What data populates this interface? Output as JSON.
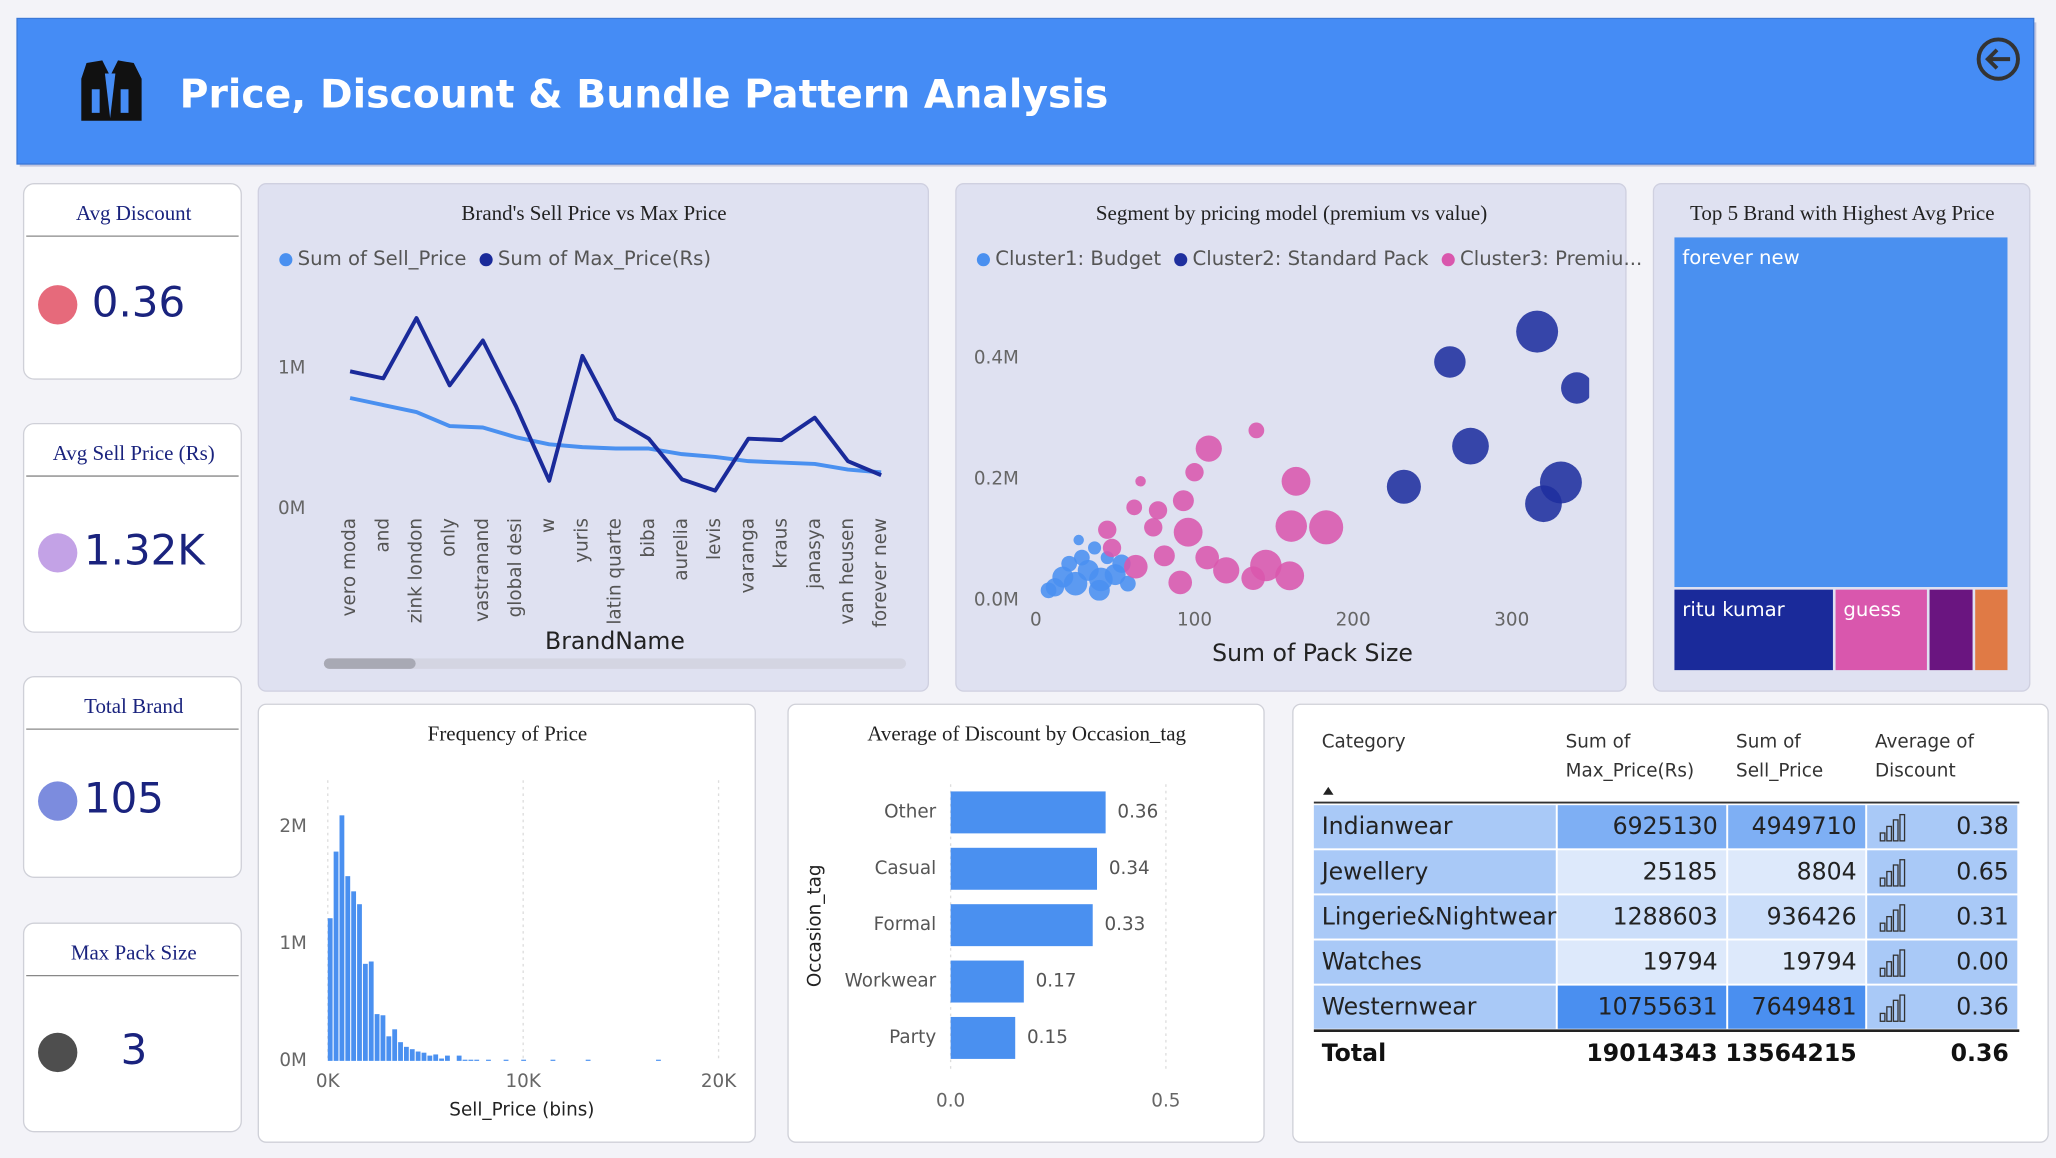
{
  "header": {
    "title": "Price, Discount & Bundle Pattern Analysis"
  },
  "kpis": [
    {
      "label": "Avg Discount",
      "value": "0.36"
    },
    {
      "label": "Avg Sell Price (Rs)",
      "value": "1.32K"
    },
    {
      "label": "Total Brand",
      "value": "105"
    },
    {
      "label": "Max Pack Size",
      "value": "3"
    }
  ],
  "chart_data": [
    {
      "type": "line",
      "title": "Brand's Sell Price vs Max Price",
      "x_label": "BrandName",
      "categories": [
        "vero moda",
        "and",
        "zink london",
        "only",
        "vastranand",
        "global desi",
        "w",
        "yuris",
        "latin quarte",
        "biba",
        "aurelia",
        "levis",
        "varanga",
        "kraus",
        "janasya",
        "van heusen",
        "forever new"
      ],
      "series": [
        {
          "name": "Sum of Sell_Price",
          "color": "#4a90f0",
          "values": [
            790000,
            740000,
            690000,
            590000,
            580000,
            510000,
            460000,
            440000,
            430000,
            430000,
            390000,
            370000,
            340000,
            330000,
            320000,
            280000,
            260000
          ]
        },
        {
          "name": "Sum of Max_Price(Rs)",
          "color": "#1a2a9a",
          "values": [
            980000,
            930000,
            1360000,
            880000,
            1200000,
            730000,
            200000,
            1090000,
            640000,
            500000,
            210000,
            130000,
            500000,
            490000,
            650000,
            340000,
            240000
          ]
        }
      ],
      "ylim": [
        0,
        1500000
      ],
      "yticks": [
        {
          "value": 0,
          "label": "0M"
        },
        {
          "value": 1000000,
          "label": "1M"
        }
      ]
    },
    {
      "type": "scatter",
      "title": "Segment by pricing model (premium vs value)",
      "x_label": "Sum of Pack Size",
      "series": [
        {
          "name": "Cluster1: Budget",
          "color": "#4a90f0",
          "x": [
            8,
            17,
            25,
            33,
            41,
            50,
            29,
            37,
            21,
            54,
            45,
            12,
            27,
            40,
            58
          ],
          "values": [
            17000,
            39000,
            28000,
            50000,
            35000,
            43000,
            71000,
            87000,
            61000,
            61000,
            71000,
            22000,
            100000,
            17000,
            28000
          ],
          "sizes": [
            6,
            8,
            9,
            8,
            9,
            8,
            6,
            5,
            6,
            7,
            5,
            7,
            4,
            8,
            6
          ]
        },
        {
          "name": "Cluster2: Standard Pack",
          "color": "#1f2f9e",
          "x": [
            316,
            261,
            341,
            274,
            232,
            331,
            320
          ],
          "values": [
            444000,
            394000,
            351000,
            255000,
            188000,
            195000,
            160000
          ],
          "sizes": [
            16,
            12,
            12,
            14,
            13,
            16,
            14
          ]
        },
        {
          "name": "Cluster3: Premiu...",
          "color": "#d957ad",
          "x": [
            139,
            109,
            100,
            164,
            66,
            93,
            77,
            62,
            183,
            161,
            96,
            45,
            74,
            145,
            160,
            120,
            108,
            91,
            63,
            81,
            137,
            48
          ],
          "values": [
            281000,
            251000,
            212000,
            197000,
            197000,
            165000,
            149000,
            154000,
            121000,
            123000,
            113000,
            117000,
            121000,
            58000,
            41000,
            50000,
            71000,
            30000,
            56000,
            74000,
            37000,
            87000
          ],
          "sizes": [
            6,
            10,
            7,
            11,
            4,
            8,
            7,
            6,
            13,
            12,
            11,
            7,
            7,
            12,
            11,
            10,
            9,
            9,
            9,
            8,
            9,
            7
          ]
        }
      ],
      "xlim": [
        0,
        348
      ],
      "ylim": [
        0,
        500000
      ],
      "xticks": [
        0,
        100,
        200,
        300
      ],
      "yticks": [
        {
          "value": 0,
          "label": "0.0M"
        },
        {
          "value": 200000,
          "label": "0.2M"
        },
        {
          "value": 400000,
          "label": "0.4M"
        }
      ]
    },
    {
      "type": "treemap",
      "title": "Top 5 Brand with Highest Avg Price",
      "categories": [
        "forever new",
        "ritu kumar",
        "guess",
        null,
        null
      ],
      "values": [
        67818,
        7440,
        4340,
        2108,
        1612
      ],
      "colors": [
        "#4a90f0",
        "#1a2a9a",
        "#d957ad",
        "#6a1580",
        "#e07a45"
      ]
    },
    {
      "type": "histogram",
      "title": "Frequency of Price",
      "x_label": "Sell_Price (bins)",
      "color": "#4a90f0",
      "bins": [
        0,
        300,
        600,
        900,
        1200,
        1500,
        1800,
        2100,
        2400,
        2700,
        3000,
        3300,
        3600,
        3900,
        4200,
        4500,
        4800,
        5100,
        5400,
        5700,
        6000,
        6300,
        6600,
        6900,
        7200,
        7500,
        7800,
        8100,
        8400,
        8700,
        9000,
        9300,
        9600,
        9900,
        10200,
        10500,
        10800,
        11100,
        11400,
        11700,
        12000,
        12300,
        12600,
        12900,
        13200,
        13500,
        13800,
        14100,
        14400,
        14700,
        15000,
        15300,
        15600,
        15900,
        16200,
        16500,
        16800,
        17100
      ],
      "values": [
        1220000,
        1790000,
        2100000,
        1580000,
        1450000,
        1340000,
        830000,
        850000,
        400000,
        390000,
        210000,
        270000,
        160000,
        120000,
        100000,
        80000,
        70000,
        45000,
        55000,
        20000,
        45000,
        0,
        45000,
        10000,
        10000,
        10000,
        0,
        10000,
        0,
        0,
        10000,
        0,
        0,
        10000,
        0,
        0,
        0,
        0,
        10000,
        0,
        0,
        0,
        0,
        0,
        10000,
        0,
        0,
        0,
        0,
        0,
        0,
        0,
        0,
        0,
        0,
        0,
        10000
      ],
      "xlim": [
        -670,
        20200
      ],
      "ylim": [
        0,
        2400000
      ],
      "grid": true,
      "xticks": [
        {
          "value": 0,
          "label": "0K"
        },
        {
          "value": 10000,
          "label": "10K"
        },
        {
          "value": 20000,
          "label": "20K"
        }
      ],
      "yticks": [
        {
          "value": 0,
          "label": "0M"
        },
        {
          "value": 1000000,
          "label": "1M"
        },
        {
          "value": 2000000,
          "label": "2M"
        }
      ]
    },
    {
      "type": "bar",
      "orientation": "horizontal",
      "title": "Average of Discount by Occasion_tag",
      "y_label": "Occasion_tag",
      "color": "#4a90f0",
      "categories": [
        "Other",
        "Casual",
        "Formal",
        "Workwear",
        "Party"
      ],
      "values": [
        0.36,
        0.34,
        0.33,
        0.17,
        0.15
      ],
      "xlim": [
        0,
        0.6
      ],
      "grid": true,
      "xticks": [
        {
          "value": 0,
          "label": "0.0"
        },
        {
          "value": 0.5,
          "label": "0.5"
        }
      ]
    }
  ],
  "table": {
    "columns": [
      "Category",
      "Sum of Max_Price(Rs)",
      "Sum of Sell_Price",
      "Average of Discount"
    ],
    "rows": [
      [
        "Indianwear",
        "6925130",
        "4949710",
        "0.38"
      ],
      [
        "Jewellery",
        "25185",
        "8804",
        "0.65"
      ],
      [
        "Lingerie&Nightwear",
        "1288603",
        "936426",
        "0.31"
      ],
      [
        "Watches",
        "19794",
        "19794",
        "0.00"
      ],
      [
        "Westernwear",
        "10755631",
        "7649481",
        "0.36"
      ]
    ],
    "total": [
      "Total",
      "19014343",
      "13564215",
      "0.36"
    ]
  }
}
